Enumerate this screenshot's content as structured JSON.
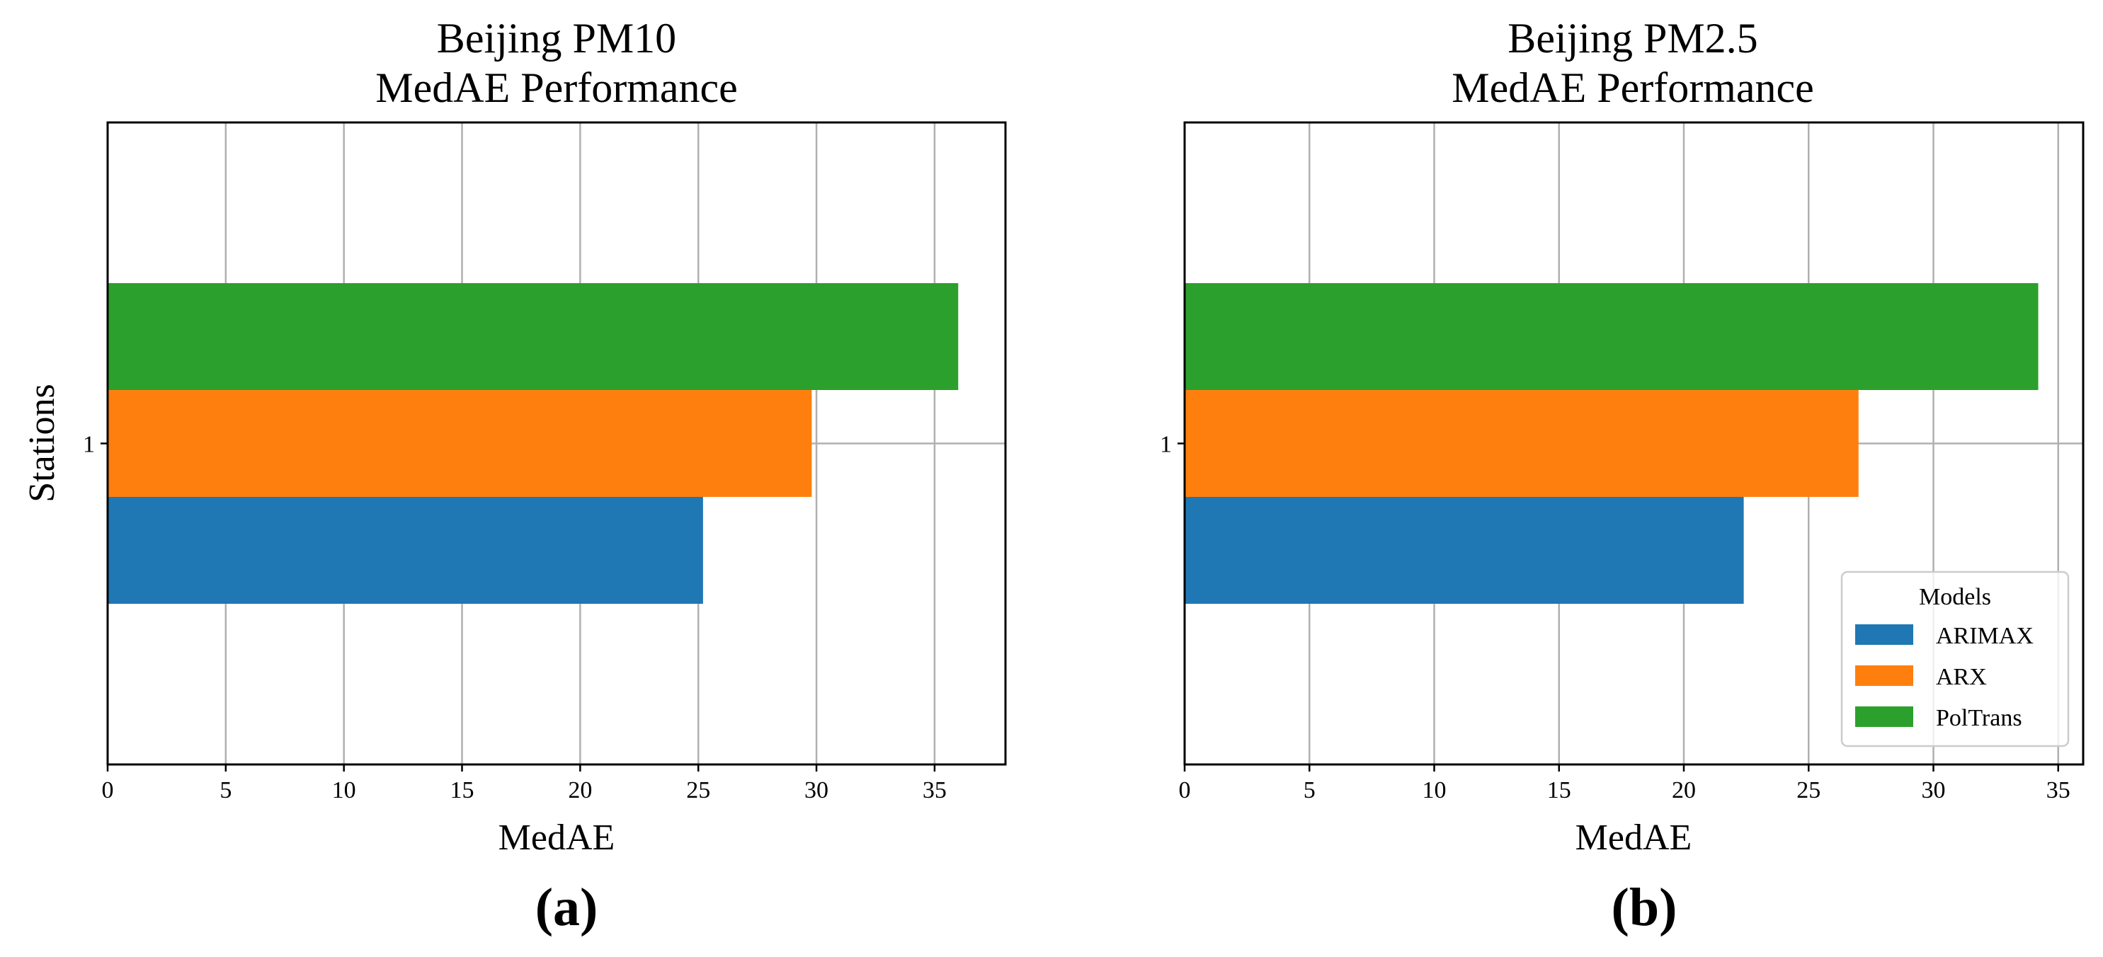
{
  "chart_data": [
    {
      "type": "bar",
      "orientation": "horizontal",
      "title_line1": "Beijing PM10",
      "title_line2": "MedAE Performance",
      "xlabel": "MedAE",
      "ylabel": "Stations",
      "panel_label": "(a)",
      "categories": [
        "1"
      ],
      "xlim": [
        0,
        38
      ],
      "xticks": [
        0,
        5,
        10,
        15,
        20,
        25,
        30,
        35
      ],
      "grid": true,
      "series": [
        {
          "name": "ARIMAX",
          "color": "#1f77b4",
          "values": [
            25.2
          ]
        },
        {
          "name": "ARX",
          "color": "#ff7f0e",
          "values": [
            29.8
          ]
        },
        {
          "name": "PolTrans",
          "color": "#2ca02c",
          "values": [
            36.0
          ]
        }
      ],
      "legend": null
    },
    {
      "type": "bar",
      "orientation": "horizontal",
      "title_line1": "Beijing PM2.5",
      "title_line2": "MedAE Performance",
      "xlabel": "MedAE",
      "ylabel": "",
      "panel_label": "(b)",
      "categories": [
        "1"
      ],
      "xlim": [
        0,
        36
      ],
      "xticks": [
        0,
        5,
        10,
        15,
        20,
        25,
        30,
        35
      ],
      "grid": true,
      "series": [
        {
          "name": "ARIMAX",
          "color": "#1f77b4",
          "values": [
            22.4
          ]
        },
        {
          "name": "ARX",
          "color": "#ff7f0e",
          "values": [
            27.0
          ]
        },
        {
          "name": "PolTrans",
          "color": "#2ca02c",
          "values": [
            34.2
          ]
        }
      ],
      "legend": {
        "title": "Models",
        "placement": "lower-right"
      }
    }
  ]
}
